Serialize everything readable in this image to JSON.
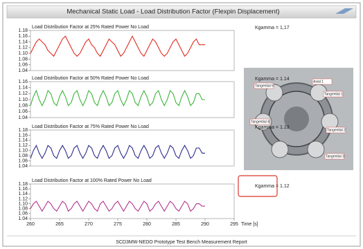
{
  "title": "Mechanical Static Load - Load Distribution Factor (Flexpin Displacement)",
  "footer": "SCD3MW-NEDO Prototype Test Bench Measurement Report",
  "photo_labels": [
    "Tangential 5",
    "Axial 1",
    "Tangential 1",
    "Tangential 4",
    "Tangential 2",
    "Tangential 3"
  ],
  "chart_data": [
    {
      "type": "line",
      "title": "Load Distribution Factor at 25% Rated Power No Load",
      "annotation": "Kgamma = 1,17",
      "color": "#e32a1f",
      "xlim": [
        260,
        295
      ],
      "ylim": [
        1.04,
        1.18
      ],
      "yticks": [
        1.04,
        1.06,
        1.08,
        {
          "value": 1.1,
          "label": "1.10"
        },
        1.12,
        1.14,
        1.16,
        1.18
      ],
      "x": [
        260,
        260.5,
        261,
        261.5,
        262,
        262.5,
        263,
        263.5,
        264,
        264.5,
        265,
        265.5,
        266,
        266.5,
        267,
        267.5,
        268,
        268.5,
        269,
        269.5,
        270,
        270.5,
        271,
        271.5,
        272,
        272.5,
        273,
        273.5,
        274,
        274.5,
        275,
        275.5,
        276,
        276.5,
        277,
        277.5,
        278,
        278.5,
        279,
        279.5,
        280,
        280.5,
        281,
        281.5,
        282,
        282.5,
        283,
        283.5,
        284,
        284.5,
        285,
        285.5,
        286,
        286.5,
        287,
        287.5,
        288,
        288.5,
        289,
        289.5,
        290
      ],
      "values": [
        1.1,
        1.12,
        1.14,
        1.15,
        1.14,
        1.13,
        1.11,
        1.1,
        1.09,
        1.11,
        1.13,
        1.15,
        1.16,
        1.14,
        1.12,
        1.1,
        1.09,
        1.1,
        1.12,
        1.14,
        1.15,
        1.13,
        1.12,
        1.1,
        1.09,
        1.11,
        1.13,
        1.15,
        1.14,
        1.13,
        1.11,
        1.09,
        1.1,
        1.12,
        1.14,
        1.16,
        1.14,
        1.12,
        1.1,
        1.09,
        1.11,
        1.13,
        1.15,
        1.14,
        1.12,
        1.1,
        1.09,
        1.1,
        1.12,
        1.14,
        1.15,
        1.13,
        1.11,
        1.09,
        1.1,
        1.12,
        1.14,
        1.15,
        1.13,
        1.13,
        1.13
      ]
    },
    {
      "type": "line",
      "title": "Load Distribution Factor at 50% Rated Power No Load",
      "annotation": "Kgamma = 1.14",
      "color": "#3db53b",
      "xlim": [
        260,
        295
      ],
      "ylim": [
        1.04,
        1.16
      ],
      "yticks": [
        1.04,
        1.06,
        1.08,
        {
          "value": 1.1,
          "label": "1.10"
        },
        1.12,
        1.14,
        1.16
      ],
      "x": [
        260,
        260.5,
        261,
        261.5,
        262,
        262.5,
        263,
        263.5,
        264,
        264.5,
        265,
        265.5,
        266,
        266.5,
        267,
        267.5,
        268,
        268.5,
        269,
        269.5,
        270,
        270.5,
        271,
        271.5,
        272,
        272.5,
        273,
        273.5,
        274,
        274.5,
        275,
        275.5,
        276,
        276.5,
        277,
        277.5,
        278,
        278.5,
        279,
        279.5,
        280,
        280.5,
        281,
        281.5,
        282,
        282.5,
        283,
        283.5,
        284,
        284.5,
        285,
        285.5,
        286,
        286.5,
        287,
        287.5,
        288,
        288.5,
        289,
        289.5,
        290
      ],
      "values": [
        1.08,
        1.11,
        1.13,
        1.1,
        1.08,
        1.1,
        1.13,
        1.12,
        1.09,
        1.08,
        1.11,
        1.13,
        1.11,
        1.08,
        1.09,
        1.12,
        1.13,
        1.1,
        1.08,
        1.1,
        1.13,
        1.12,
        1.09,
        1.08,
        1.11,
        1.13,
        1.11,
        1.08,
        1.09,
        1.12,
        1.13,
        1.1,
        1.08,
        1.1,
        1.13,
        1.12,
        1.09,
        1.08,
        1.11,
        1.13,
        1.11,
        1.08,
        1.09,
        1.12,
        1.13,
        1.1,
        1.08,
        1.1,
        1.13,
        1.12,
        1.09,
        1.08,
        1.11,
        1.13,
        1.11,
        1.08,
        1.09,
        1.12,
        1.12,
        1.1,
        1.1
      ]
    },
    {
      "type": "line",
      "title": "Load Distribution Factor at 75% Rated Power No Load",
      "annotation": "Kgamma = 1.13",
      "color": "#2b2b8c",
      "xlim": [
        260,
        295
      ],
      "ylim": [
        1.04,
        1.18
      ],
      "yticks": [
        1.04,
        1.06,
        1.08,
        {
          "value": 1.1,
          "label": "1.10"
        },
        1.12,
        1.14,
        1.16,
        1.18
      ],
      "x": [
        260,
        260.5,
        261,
        261.5,
        262,
        262.5,
        263,
        263.5,
        264,
        264.5,
        265,
        265.5,
        266,
        266.5,
        267,
        267.5,
        268,
        268.5,
        269,
        269.5,
        270,
        270.5,
        271,
        271.5,
        272,
        272.5,
        273,
        273.5,
        274,
        274.5,
        275,
        275.5,
        276,
        276.5,
        277,
        277.5,
        278,
        278.5,
        279,
        279.5,
        280,
        280.5,
        281,
        281.5,
        282,
        282.5,
        283,
        283.5,
        284,
        284.5,
        285,
        285.5,
        286,
        286.5,
        287,
        287.5,
        288,
        288.5,
        289,
        289.5,
        290
      ],
      "values": [
        1.07,
        1.1,
        1.12,
        1.09,
        1.07,
        1.09,
        1.12,
        1.11,
        1.08,
        1.07,
        1.1,
        1.12,
        1.1,
        1.07,
        1.08,
        1.11,
        1.12,
        1.09,
        1.07,
        1.09,
        1.12,
        1.11,
        1.08,
        1.07,
        1.1,
        1.12,
        1.1,
        1.07,
        1.08,
        1.11,
        1.12,
        1.09,
        1.07,
        1.09,
        1.12,
        1.11,
        1.08,
        1.07,
        1.1,
        1.12,
        1.1,
        1.07,
        1.08,
        1.11,
        1.12,
        1.09,
        1.07,
        1.09,
        1.12,
        1.11,
        1.08,
        1.07,
        1.1,
        1.12,
        1.1,
        1.07,
        1.08,
        1.11,
        1.11,
        1.09,
        1.09
      ]
    },
    {
      "type": "line",
      "title": "Load Distribution Factor at 100% Rated Power No Load",
      "annotation": "Kgamma = 1.12",
      "annotation_boxed": true,
      "color": "#b2318c",
      "xlim": [
        260,
        295
      ],
      "ylim": [
        1.04,
        1.18
      ],
      "yticks": [
        1.04,
        1.06,
        1.08,
        {
          "value": 1.1,
          "label": "1.10"
        },
        1.12,
        1.14,
        1.16,
        1.18
      ],
      "xticks": [
        260,
        265,
        270,
        275,
        280,
        285,
        290,
        295
      ],
      "xlabel": "Time [s]",
      "x": [
        260,
        260.5,
        261,
        261.5,
        262,
        262.5,
        263,
        263.5,
        264,
        264.5,
        265,
        265.5,
        266,
        266.5,
        267,
        267.5,
        268,
        268.5,
        269,
        269.5,
        270,
        270.5,
        271,
        271.5,
        272,
        272.5,
        273,
        273.5,
        274,
        274.5,
        275,
        275.5,
        276,
        276.5,
        277,
        277.5,
        278,
        278.5,
        279,
        279.5,
        280,
        280.5,
        281,
        281.5,
        282,
        282.5,
        283,
        283.5,
        284,
        284.5,
        285,
        285.5,
        286,
        286.5,
        287,
        287.5,
        288,
        288.5,
        289,
        289.5,
        290
      ],
      "values": [
        1.08,
        1.1,
        1.11,
        1.09,
        1.07,
        1.09,
        1.11,
        1.1,
        1.08,
        1.07,
        1.09,
        1.11,
        1.1,
        1.07,
        1.08,
        1.1,
        1.11,
        1.09,
        1.07,
        1.09,
        1.11,
        1.1,
        1.08,
        1.07,
        1.1,
        1.11,
        1.09,
        1.07,
        1.08,
        1.1,
        1.11,
        1.09,
        1.07,
        1.09,
        1.11,
        1.1,
        1.08,
        1.07,
        1.09,
        1.11,
        1.1,
        1.07,
        1.08,
        1.1,
        1.11,
        1.09,
        1.07,
        1.09,
        1.11,
        1.1,
        1.08,
        1.07,
        1.09,
        1.11,
        1.1,
        1.07,
        1.08,
        1.1,
        1.1,
        1.09,
        1.09
      ]
    }
  ]
}
